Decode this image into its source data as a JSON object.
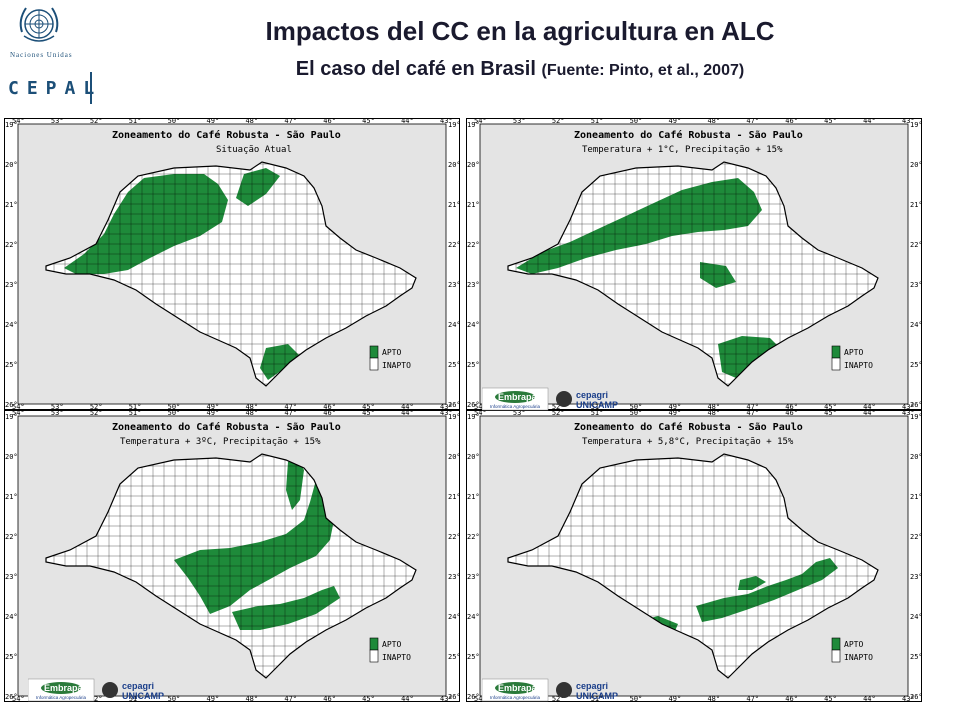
{
  "header": {
    "title": "Impactos del CC en la agricultura en ALC",
    "subtitle": "El caso del café en Brasil",
    "source": "(Fuente:  Pinto, et al., 2007)"
  },
  "logo": {
    "org_name": "Naciones Unidas",
    "acronym": "CEPAL",
    "color": "#1c4f78"
  },
  "map_common": {
    "map_title": "Zoneamento do Café Robusta - São Paulo",
    "lon_ticks": [
      "54°",
      "53°",
      "52°",
      "51°",
      "50°",
      "49°",
      "48°",
      "47°",
      "46°",
      "45°",
      "44°",
      "43°"
    ],
    "lat_ticks": [
      "19°",
      "20°",
      "21°",
      "22°",
      "23°",
      "24°",
      "25°",
      "26°"
    ],
    "legend": {
      "apto": "APTO",
      "inapto": "INAPTO"
    },
    "colors": {
      "apto": "#1e8a3a",
      "inapto": "#ffffff",
      "background": "#e4e4e4"
    }
  },
  "maps": [
    {
      "scenario": "Situação Atual",
      "apto_region": "noroeste"
    },
    {
      "scenario": "Temperatura + 1°C,  Precipitação + 15%",
      "apto_region": "centro-norte"
    },
    {
      "scenario": "Temperatura + 3ºC,  Precipitação + 15%",
      "apto_region": "centro-leste"
    },
    {
      "scenario": "Temperatura + 5,8°C,  Precipitação + 15%",
      "apto_region": "sudeste-litoral"
    }
  ],
  "institutions": {
    "embrapa": "Embrapa",
    "embrapa_sub": "Informática Agropecuária",
    "cepagri": "cepagri",
    "unicamp": "UNICAMP"
  }
}
